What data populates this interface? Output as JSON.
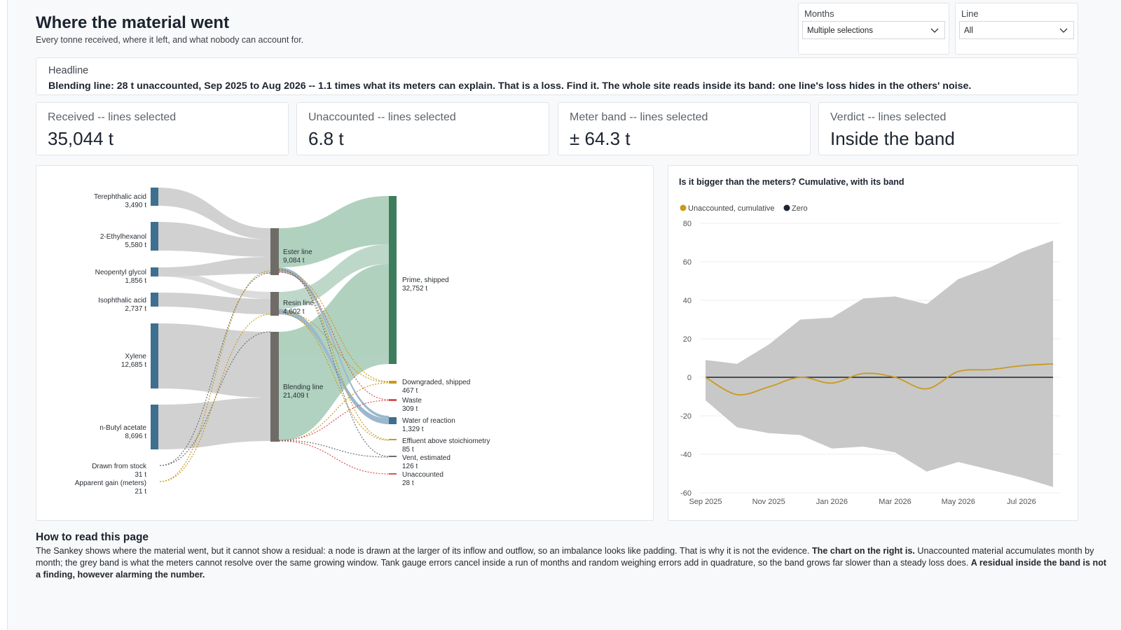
{
  "header": {
    "title": "Where the material went",
    "subtitle": "Every tonne received, where it left, and what nobody can account for."
  },
  "filters": {
    "months": {
      "label": "Months",
      "value": "Multiple selections"
    },
    "line": {
      "label": "Line",
      "value": "All"
    }
  },
  "headline": {
    "label": "Headline",
    "text": "Blending line: 28 t unaccounted, Sep 2025 to Aug 2026 -- 1.1 times what its meters can explain. That is a loss. Find it. The whole site reads inside its band: one line's loss hides in the others' noise."
  },
  "kpis": [
    {
      "label": "Received -- lines selected",
      "value": "35,044 t"
    },
    {
      "label": "Unaccounted -- lines selected",
      "value": "6.8 t"
    },
    {
      "label": "Meter band -- lines selected",
      "value": "± 64.3 t"
    },
    {
      "label": "Verdict -- lines selected",
      "value": "Inside the band"
    }
  ],
  "sankey": {
    "colors": {
      "source": "#3e6f8e",
      "process": "#6f6c68",
      "prime": "#3d7d5b",
      "downgraded": "#c99a1e",
      "waste": "#d9534f",
      "water": "#3e6f8e",
      "effluent": "#c99a1e",
      "vent": "#6b6f74",
      "unaccounted": "#d9534f",
      "link_grey": "#cfcfcf",
      "link_green": "#a9cdb9",
      "link_blue": "#9bb8cc"
    },
    "sources": [
      {
        "name": "Terephthalic acid",
        "value": "3,490 t"
      },
      {
        "name": "2-Ethylhexanol",
        "value": "5,580 t"
      },
      {
        "name": "Neopentyl glycol",
        "value": "1,856 t"
      },
      {
        "name": "Isophthalic acid",
        "value": "2,737 t"
      },
      {
        "name": "Xylene",
        "value": "12,685 t"
      },
      {
        "name": "n-Butyl acetate",
        "value": "8,696 t"
      },
      {
        "name": "Drawn from stock",
        "value": "31 t"
      },
      {
        "name": "Apparent gain (meters)",
        "value": "21 t"
      }
    ],
    "processes": [
      {
        "name": "Ester line",
        "value": "9,084 t"
      },
      {
        "name": "Resin line",
        "value": "4,602 t"
      },
      {
        "name": "Blending line",
        "value": "21,409 t"
      }
    ],
    "sinks": [
      {
        "name": "Prime, shipped",
        "value": "32,752 t"
      },
      {
        "name": "Downgraded, shipped",
        "value": "467 t"
      },
      {
        "name": "Waste",
        "value": "309 t"
      },
      {
        "name": "Water of reaction",
        "value": "1,329 t"
      },
      {
        "name": "Effluent above stoichiometry",
        "value": "85 t"
      },
      {
        "name": "Vent, estimated",
        "value": "126 t"
      },
      {
        "name": "Unaccounted",
        "value": "28 t"
      }
    ]
  },
  "chart_data": {
    "type": "line",
    "title": "Is it bigger than the meters? Cumulative, with its band",
    "legend_position": "top-left",
    "x_tick_labels": [
      "Sep 2025",
      "Nov 2025",
      "Jan 2026",
      "Mar 2026",
      "May 2026",
      "Jul 2026"
    ],
    "x": [
      "2025-09",
      "2025-10",
      "2025-11",
      "2025-12",
      "2026-01",
      "2026-02",
      "2026-03",
      "2026-04",
      "2026-05",
      "2026-06",
      "2026-07",
      "2026-08"
    ],
    "ylim": [
      -60,
      80
    ],
    "y_ticks": [
      -60,
      -40,
      -20,
      0,
      20,
      40,
      60,
      80
    ],
    "grid": true,
    "series": [
      {
        "name": "Unaccounted, cumulative",
        "color": "#c99a1e",
        "values": [
          0,
          -9,
          -5,
          0,
          -3,
          2,
          0,
          -6,
          3,
          4,
          6,
          7
        ]
      },
      {
        "name": "Zero",
        "color": "#1b2430",
        "values": [
          0,
          0,
          0,
          0,
          0,
          0,
          0,
          0,
          0,
          0,
          0,
          0
        ]
      }
    ],
    "band": {
      "color": "#c8c8c8",
      "upper": [
        9,
        7,
        17,
        30,
        31,
        41,
        42,
        38,
        51,
        57,
        65,
        71
      ],
      "lower": [
        -12,
        -26,
        -29,
        -30,
        -37,
        -36,
        -39,
        -49,
        -44,
        -48,
        -52,
        -57
      ]
    }
  },
  "howto": {
    "title": "How to read this page",
    "p1": "The Sankey shows where the material went, but it cannot show a residual: a node is drawn at the larger of its inflow and outflow, so an imbalance looks like padding. That is why it is not the evidence. ",
    "b1": "The chart on the right is.",
    "p2": " Unaccounted material accumulates month by month; the grey band is what the meters cannot resolve over the same growing window. Tank gauge errors cancel inside a run of months and random weighing errors add in quadrature, so the band grows far slower than a steady loss does. ",
    "b2": "A residual inside the band is not a finding, however alarming the number."
  }
}
